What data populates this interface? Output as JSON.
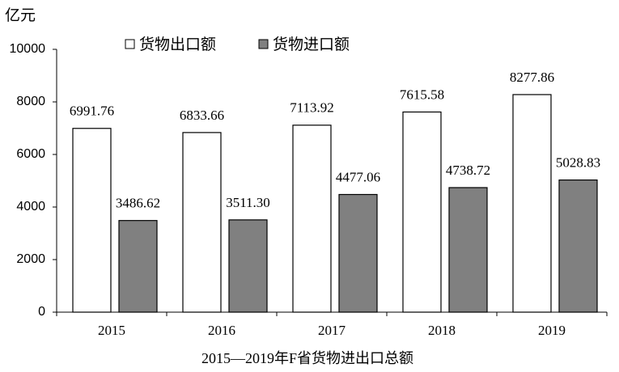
{
  "chart_data": {
    "type": "bar",
    "title": "2015—2019年F省货物进出口总额",
    "y_label": "亿元",
    "categories": [
      "2015",
      "2016",
      "2017",
      "2018",
      "2019"
    ],
    "series": [
      {
        "name": "货物出口额",
        "color": "#ffffff",
        "values": [
          6991.76,
          6833.66,
          7113.92,
          7615.58,
          8277.86
        ],
        "value_labels": [
          "6991.76",
          "6833.66",
          "7113.92",
          "7615.58",
          "8277.86"
        ]
      },
      {
        "name": "货物进口额",
        "color": "#808080",
        "values": [
          3486.62,
          3511.3,
          4477.06,
          4738.72,
          5028.83
        ],
        "value_labels": [
          "3486.62",
          "3511.30",
          "4477.06",
          "4738.72",
          "5028.83"
        ]
      }
    ],
    "ylim": [
      0,
      10000
    ],
    "yticks": [
      0,
      2000,
      4000,
      6000,
      8000,
      10000
    ],
    "grid": false,
    "legend": "top"
  }
}
